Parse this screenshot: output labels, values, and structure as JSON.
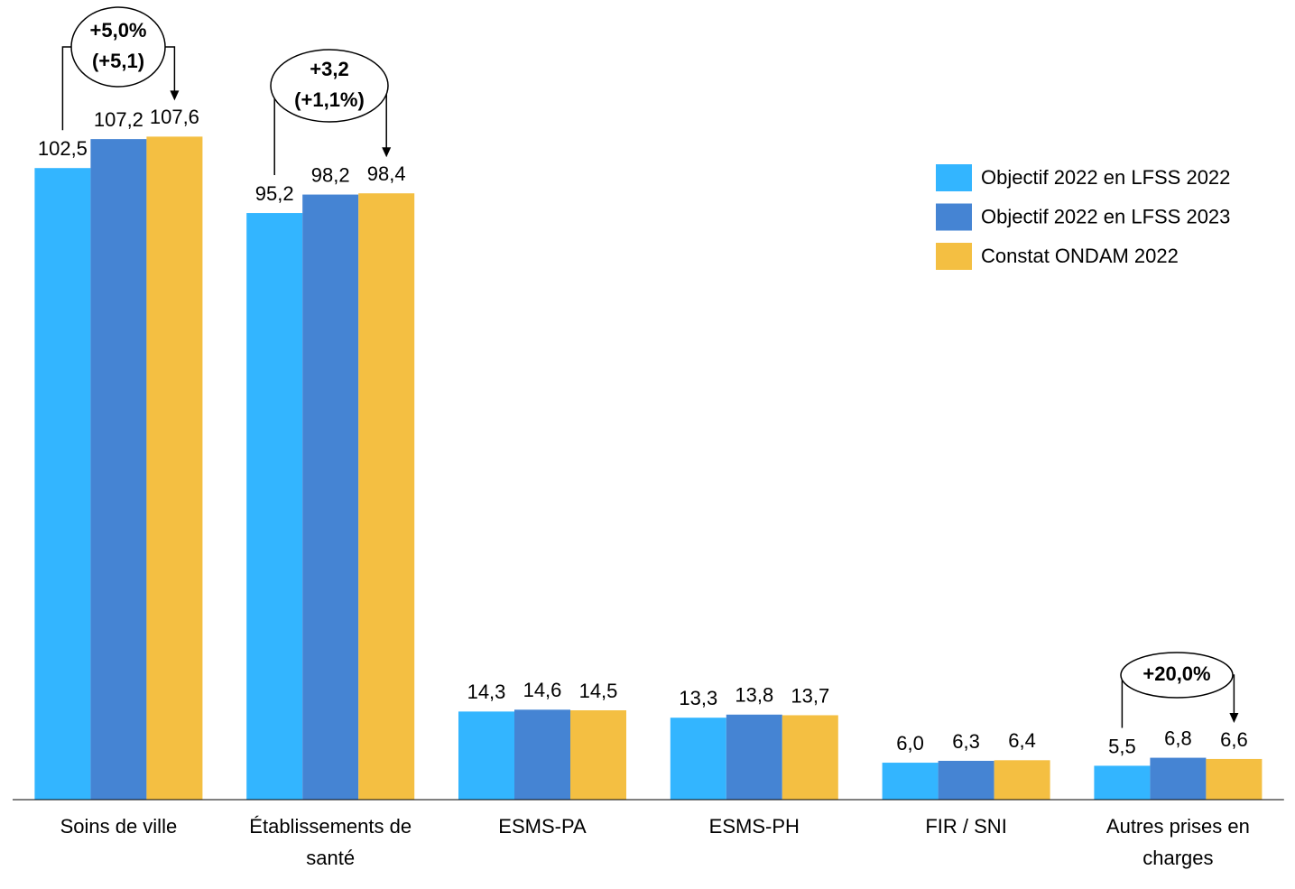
{
  "chart_data": {
    "type": "bar",
    "categories": [
      "Soins de ville",
      "Établissements de santé",
      "ESMS-PA",
      "ESMS-PH",
      "FIR / SNI",
      "Autres prises en charges"
    ],
    "series": [
      {
        "name": "Objectif 2022 en LFSS 2022",
        "color": "#33b5ff",
        "values": [
          102.5,
          95.2,
          14.3,
          13.3,
          6.0,
          5.5
        ],
        "value_labels": [
          "102,5",
          "95,2",
          "14,3",
          "13,3",
          "6,0",
          "5,5"
        ]
      },
      {
        "name": "Objectif 2022 en LFSS 2023",
        "color": "#4584d3",
        "values": [
          107.2,
          98.2,
          14.6,
          13.8,
          6.3,
          6.8
        ],
        "value_labels": [
          "107,2",
          "98,2",
          "14,6",
          "13,8",
          "6,3",
          "6,8"
        ]
      },
      {
        "name": "Constat ONDAM 2022",
        "color": "#f4bf42",
        "values": [
          107.6,
          98.4,
          14.5,
          13.7,
          6.4,
          6.6
        ],
        "value_labels": [
          "107,6",
          "98,4",
          "14,5",
          "13,7",
          "6,4",
          "6,6"
        ]
      }
    ],
    "ylim": [
      0,
      110
    ],
    "annotations": [
      {
        "lines": [
          "+5,0%",
          "(+5,1)"
        ]
      },
      {
        "lines": [
          "+3,2",
          "(+1,1%)"
        ]
      },
      {
        "lines": [
          "+20,0%"
        ]
      }
    ],
    "legend": "top-right"
  }
}
